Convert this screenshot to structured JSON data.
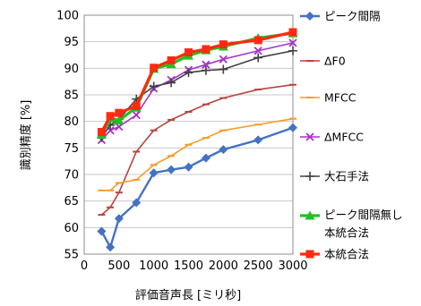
{
  "chart_data": {
    "type": "line",
    "xlabel": "評価音声長 [ミリ秒]",
    "ylabel": "識別精度 [%]",
    "xlim": [
      0,
      3000
    ],
    "ylim": [
      55,
      100
    ],
    "xticks": [
      0,
      500,
      1000,
      1500,
      2000,
      2500,
      3000
    ],
    "yticks": [
      55,
      60,
      65,
      70,
      75,
      80,
      85,
      90,
      95,
      100
    ],
    "grid": "horizontal",
    "legend": "right",
    "series": [
      {
        "name": "ピーク間隔",
        "color": "#4472c4",
        "marker": "diamond",
        "x": [
          250,
          375,
          500,
          750,
          1000,
          1250,
          1500,
          1750,
          2000,
          2500,
          3000
        ],
        "y": [
          59.3,
          56.3,
          61.7,
          64.7,
          70.3,
          70.9,
          71.4,
          73.1,
          74.7,
          76.5,
          78.8
        ]
      },
      {
        "name": "ΔF0",
        "color": "#b8443f",
        "marker": "dash",
        "x": [
          250,
          375,
          500,
          750,
          1000,
          1250,
          1500,
          1750,
          2000,
          2500,
          3000
        ],
        "y": [
          62.4,
          63.8,
          66.6,
          74.3,
          78.3,
          80.3,
          81.8,
          83.2,
          84.4,
          86.0,
          86.9
        ]
      },
      {
        "name": "MFCC",
        "color": "#f79b2a",
        "marker": "dash",
        "x": [
          250,
          375,
          500,
          750,
          1000,
          1250,
          1500,
          1750,
          2000,
          2500,
          3000
        ],
        "y": [
          67.0,
          67.0,
          68.4,
          69.0,
          71.8,
          73.5,
          75.6,
          76.9,
          78.3,
          79.4,
          80.5
        ]
      },
      {
        "name": "ΔMFCC",
        "color": "#a733c9",
        "marker": "x",
        "x": [
          250,
          375,
          500,
          750,
          1000,
          1250,
          1500,
          1750,
          2000,
          2500,
          3000
        ],
        "y": [
          76.5,
          78.3,
          79.0,
          81.2,
          86.2,
          87.8,
          89.7,
          90.7,
          91.7,
          93.3,
          94.8
        ]
      },
      {
        "name": "大石手法",
        "color": "#404040",
        "marker": "plus",
        "x": [
          250,
          375,
          500,
          750,
          1000,
          1250,
          1500,
          1750,
          2000,
          2500,
          3000
        ],
        "y": [
          77.0,
          79.3,
          80.4,
          84.2,
          86.6,
          87.3,
          89.2,
          89.6,
          89.8,
          92.0,
          93.3
        ]
      },
      {
        "name": "ピーク間隔無し本統合法",
        "color": "#22c022",
        "marker": "triangle",
        "x": [
          250,
          375,
          500,
          750,
          1000,
          1250,
          1500,
          1750,
          2000,
          2500,
          3000
        ],
        "y": [
          77.5,
          80.6,
          80.2,
          82.6,
          89.9,
          90.8,
          92.4,
          93.4,
          94.1,
          95.7,
          96.6
        ]
      },
      {
        "name": "本統合法",
        "color": "#ff2a10",
        "marker": "square",
        "x": [
          250,
          375,
          500,
          750,
          1000,
          1250,
          1500,
          1750,
          2000,
          2500,
          3000
        ],
        "y": [
          78.0,
          81.0,
          81.6,
          82.9,
          90.1,
          91.5,
          93.0,
          93.6,
          94.5,
          95.3,
          96.8
        ]
      }
    ]
  }
}
